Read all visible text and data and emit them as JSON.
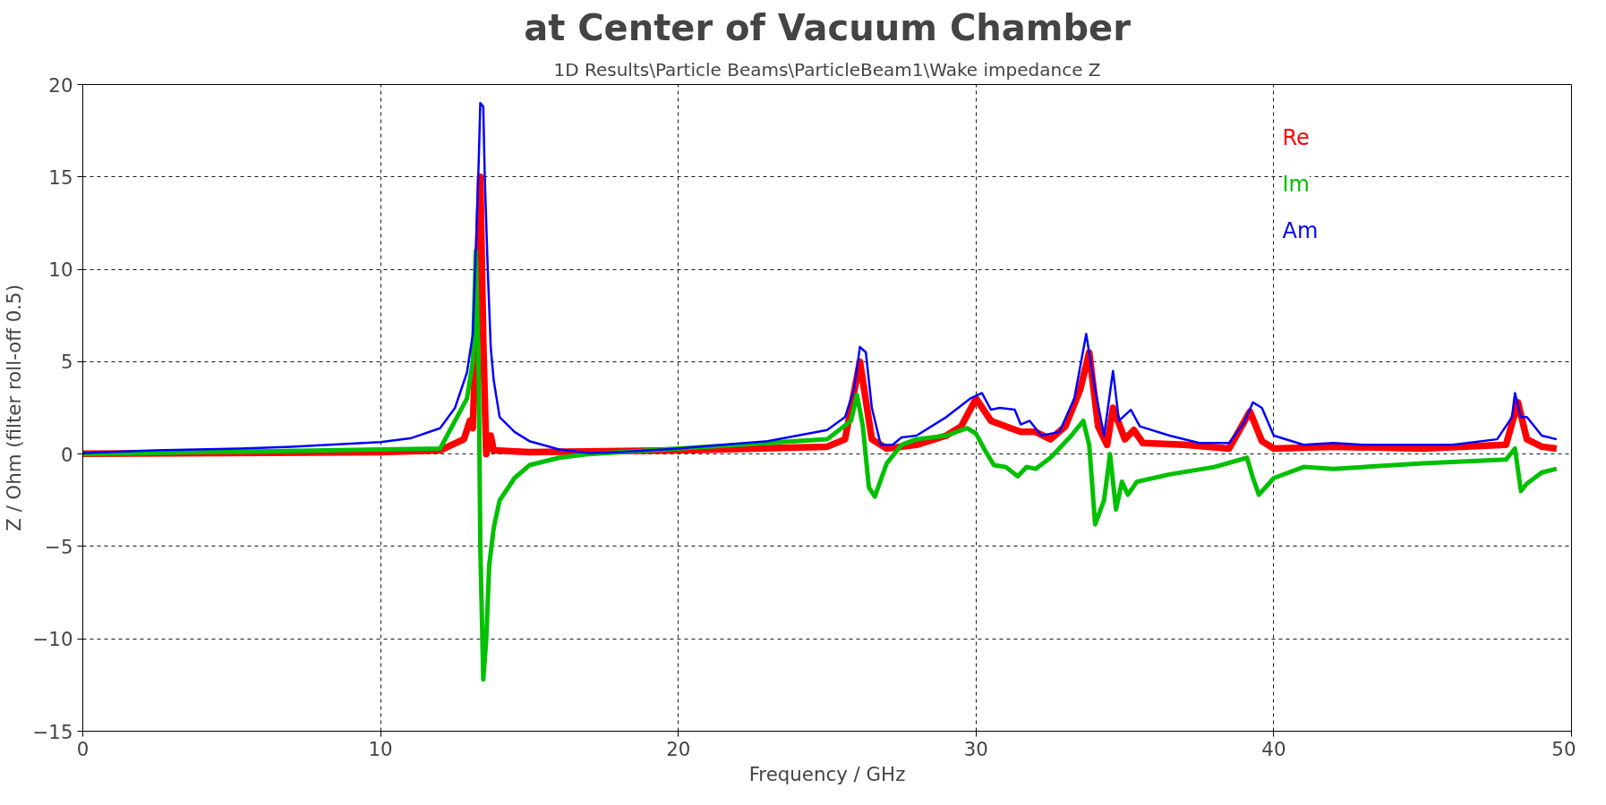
{
  "chart_data": {
    "type": "line",
    "title": "at Center of Vacuum Chamber",
    "subtitle": "1D Results\\Particle Beams\\ParticleBeam1\\Wake impedance Z",
    "xlabel": "Frequency / GHz",
    "ylabel": "Z / Ohm (filter roll-off 0.5)",
    "xlim": [
      0,
      50
    ],
    "xticks": [
      0,
      10,
      20,
      30,
      40,
      50
    ],
    "ylim": [
      -15,
      20
    ],
    "yticks": [
      -15,
      -10,
      -5,
      0,
      5,
      10,
      15,
      20
    ],
    "grid": true,
    "legend": "top right",
    "line_style": "solid",
    "marker": "none",
    "series": [
      {
        "name": "Re",
        "color": "#ff0000",
        "x": [
          0,
          10,
          12,
          12.8,
          13,
          13.1,
          13.2,
          13.35,
          13.45,
          13.55,
          13.7,
          13.8,
          15,
          20,
          25,
          25.6,
          26.1,
          26.5,
          27,
          28,
          29,
          29.5,
          30,
          30.5,
          31,
          31.5,
          32,
          32.5,
          33,
          33.5,
          33.8,
          34.1,
          34.4,
          34.6,
          35,
          35.3,
          35.6,
          37,
          38.5,
          39.2,
          39.6,
          40,
          42,
          45,
          47.8,
          48.2,
          48.5,
          49,
          49.5
        ],
        "values": [
          0.02,
          0.1,
          0.2,
          0.8,
          1.8,
          1.4,
          6.5,
          15,
          6,
          0,
          1,
          0.2,
          0.1,
          0.2,
          0.4,
          0.8,
          5,
          0.8,
          0.3,
          0.5,
          1,
          1.5,
          3,
          1.8,
          1.5,
          1.2,
          1.2,
          0.8,
          1.5,
          3.5,
          5.5,
          1.5,
          0.5,
          2.5,
          0.8,
          1.3,
          0.6,
          0.5,
          0.3,
          2.3,
          0.7,
          0.3,
          0.4,
          0.3,
          0.5,
          2.8,
          0.8,
          0.4,
          0.3
        ]
      },
      {
        "name": "Im",
        "color": "#00c000",
        "x": [
          0,
          12,
          12.9,
          13.1,
          13.2,
          13.3,
          13.35,
          13.45,
          13.55,
          13.65,
          13.8,
          14,
          14.5,
          15,
          16,
          17,
          20,
          25,
          25.8,
          26,
          26.2,
          26.4,
          26.6,
          27,
          27.5,
          28,
          29,
          29.7,
          30,
          30.3,
          30.6,
          31,
          31.4,
          31.7,
          32,
          32.5,
          33.2,
          33.6,
          33.8,
          34,
          34.3,
          34.5,
          34.7,
          34.9,
          35.1,
          35.4,
          36.5,
          38,
          39.1,
          39.3,
          39.5,
          40,
          41,
          42,
          45,
          47.8,
          48.1,
          48.3,
          48.5,
          49,
          49.5
        ],
        "values": [
          0,
          0.3,
          3,
          5,
          11,
          4,
          -5,
          -12.2,
          -10,
          -6,
          -4,
          -2.5,
          -1.3,
          -0.6,
          -0.2,
          0,
          0.3,
          0.8,
          1.8,
          3.2,
          1.5,
          -1.8,
          -2.3,
          -0.5,
          0.5,
          0.8,
          1,
          1.4,
          1.1,
          0.2,
          -0.6,
          -0.7,
          -1.2,
          -0.7,
          -0.8,
          -0.2,
          1.0,
          1.8,
          0.5,
          -3.8,
          -2.5,
          0,
          -3,
          -1.5,
          -2.2,
          -1.5,
          -1.1,
          -0.7,
          -0.2,
          -1.3,
          -2.2,
          -1.3,
          -0.7,
          -0.8,
          -0.5,
          -0.3,
          0.3,
          -2.0,
          -1.6,
          -1.0,
          -0.8
        ]
      },
      {
        "name": "Am",
        "color": "#0000ff",
        "x": [
          0,
          2.4,
          5.3,
          7,
          10,
          11,
          12,
          12.5,
          12.9,
          13.1,
          13.2,
          13.3,
          13.35,
          13.45,
          13.5,
          13.6,
          13.7,
          13.8,
          14,
          14.5,
          15,
          16,
          17,
          18,
          20,
          23,
          25,
          25.6,
          25.9,
          26.1,
          26.3,
          26.5,
          26.8,
          27.2,
          27.5,
          28,
          29,
          29.8,
          30.2,
          30.5,
          30.8,
          31.3,
          31.5,
          31.8,
          32.2,
          32.8,
          33.3,
          33.7,
          34,
          34.3,
          34.6,
          34.8,
          35.2,
          35.5,
          36.5,
          37.5,
          38.5,
          39,
          39.3,
          39.6,
          40,
          41,
          42,
          43,
          46,
          47.5,
          48,
          48.1,
          48.3,
          48.5,
          49,
          49.5
        ],
        "values": [
          0.05,
          0.2,
          0.3,
          0.4,
          0.65,
          0.85,
          1.4,
          2.5,
          4.4,
          6.5,
          11,
          16,
          19,
          18.8,
          15,
          10,
          5.8,
          4,
          2,
          1.2,
          0.7,
          0.25,
          0.05,
          0.1,
          0.3,
          0.7,
          1.3,
          2,
          3.5,
          5.8,
          5.5,
          2.5,
          0.5,
          0.5,
          0.9,
          1,
          2,
          3,
          3.3,
          2.4,
          2.5,
          2.4,
          1.6,
          1.8,
          1.0,
          1.2,
          3,
          6.5,
          3.5,
          1.0,
          4.5,
          1.8,
          2.4,
          1.5,
          1.0,
          0.6,
          0.6,
          1.7,
          2.8,
          2.5,
          1.0,
          0.5,
          0.6,
          0.5,
          0.5,
          0.8,
          2,
          3.3,
          2.0,
          2,
          1,
          0.8
        ]
      }
    ]
  }
}
